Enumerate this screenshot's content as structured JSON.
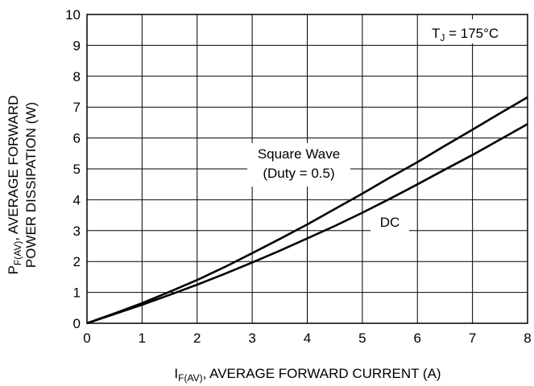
{
  "chart_data": {
    "type": "line",
    "xlabel": {
      "prefix": "I",
      "subscript": "F(AV)",
      "suffix": ", AVERAGE FORWARD CURRENT (A)"
    },
    "ylabel": {
      "line1_prefix": "P",
      "line1_subscript": "F(AV)",
      "line1_suffix": ", AVERAGE FORWARD",
      "line2": "POWER DISSIPATION (W)"
    },
    "xlim": [
      0,
      8
    ],
    "ylim": [
      0,
      10
    ],
    "x_ticks": [
      "0",
      "1",
      "2",
      "3",
      "4",
      "5",
      "6",
      "7",
      "8"
    ],
    "y_ticks": [
      "0",
      "1",
      "2",
      "3",
      "4",
      "5",
      "6",
      "7",
      "8",
      "9",
      "10"
    ],
    "grid": true,
    "condition": {
      "prefix": "T",
      "subscript": "J",
      "suffix": " = 175°C"
    },
    "series": [
      {
        "name": "Square Wave (Duty = 0.5)",
        "label_lines": [
          "Square Wave",
          "(Duty = 0.5)"
        ],
        "x": [
          0,
          0.5,
          1,
          1.5,
          2,
          2.5,
          3,
          3.5,
          4,
          4.5,
          5,
          5.5,
          6,
          6.5,
          7,
          7.5,
          8
        ],
        "y": [
          0,
          0.32,
          0.65,
          1.02,
          1.4,
          1.82,
          2.27,
          2.73,
          3.2,
          3.7,
          4.2,
          4.72,
          5.22,
          5.75,
          6.27,
          6.8,
          7.32
        ]
      },
      {
        "name": "DC",
        "label_lines": [
          "DC"
        ],
        "x": [
          0,
          0.5,
          1,
          1.5,
          2,
          2.5,
          3,
          3.5,
          4,
          4.5,
          5,
          5.5,
          6,
          6.5,
          7,
          7.5,
          8
        ],
        "y": [
          0,
          0.3,
          0.6,
          0.92,
          1.25,
          1.6,
          1.97,
          2.35,
          2.75,
          3.15,
          3.58,
          4.03,
          4.5,
          4.98,
          5.45,
          5.95,
          6.45
        ]
      }
    ],
    "colors": {
      "grid": "#000000",
      "line": "#000000",
      "background": "#ffffff"
    }
  }
}
